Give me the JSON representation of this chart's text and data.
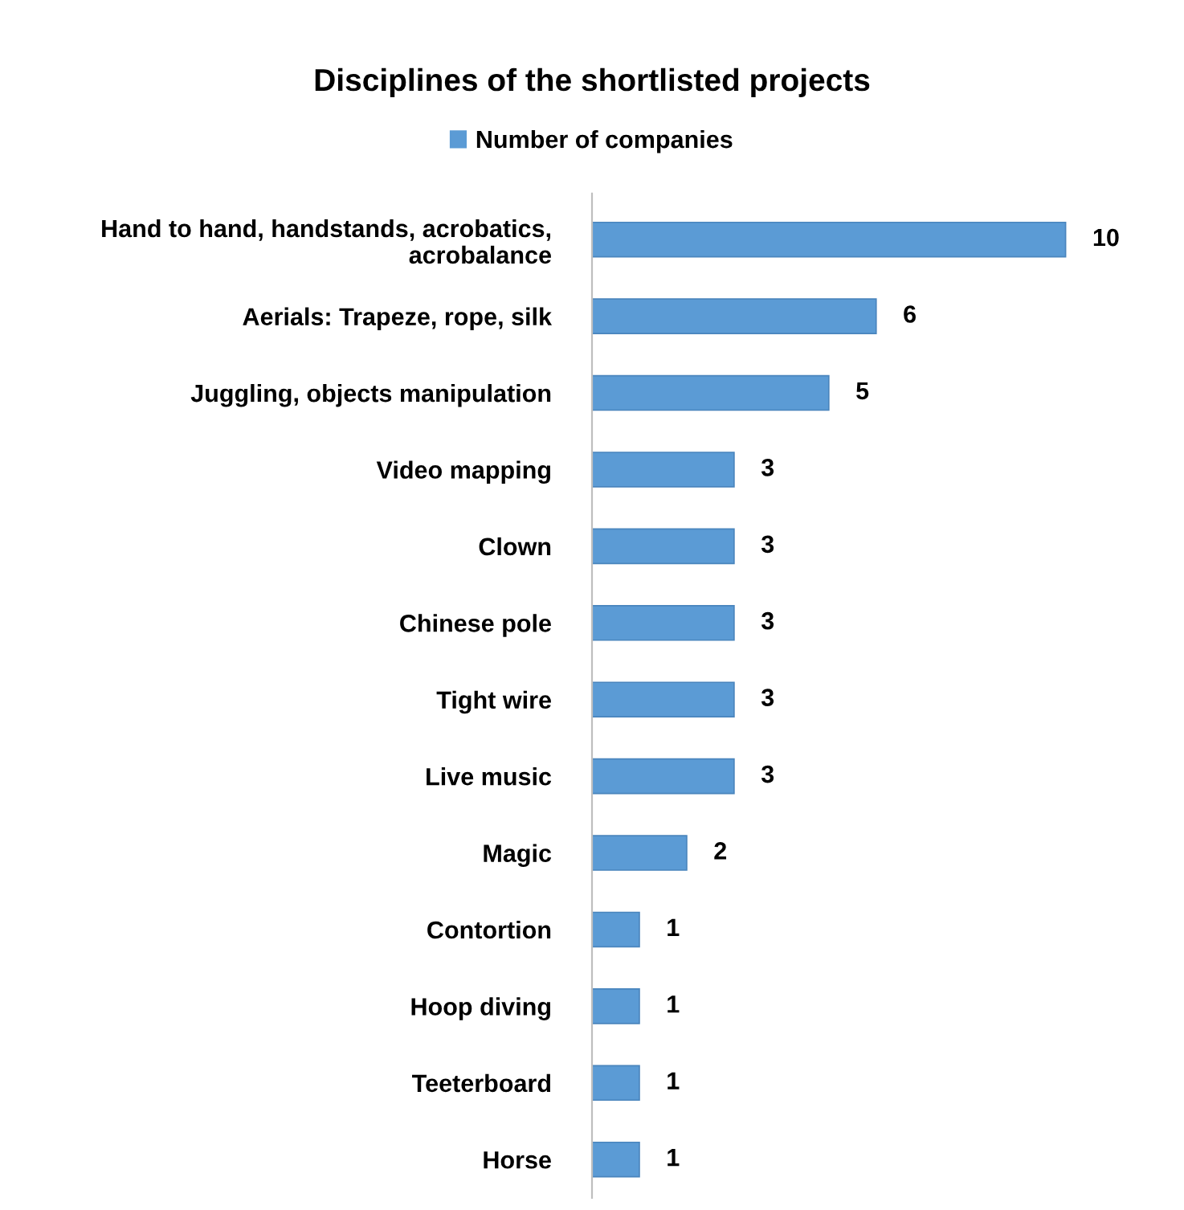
{
  "chart_data": {
    "type": "bar",
    "orientation": "horizontal",
    "title": "Disciplines of the shortlisted projects",
    "categories": [
      "Hand to hand, handstands, acrobatics,\nacrobalance",
      "Aerials: Trapeze, rope, silk",
      "Juggling, objects manipulation",
      "Video mapping",
      "Clown",
      "Chinese pole",
      "Tight wire",
      "Live music",
      "Magic",
      "Contortion",
      "Hoop diving",
      "Teeterboard",
      "Horse"
    ],
    "series": [
      {
        "name": "Number of companies",
        "color": "#5b9bd5",
        "values": [
          10,
          6,
          5,
          3,
          3,
          3,
          3,
          3,
          2,
          1,
          1,
          1,
          1
        ]
      }
    ],
    "data_labels": true,
    "legend": "top",
    "grid": false
  }
}
